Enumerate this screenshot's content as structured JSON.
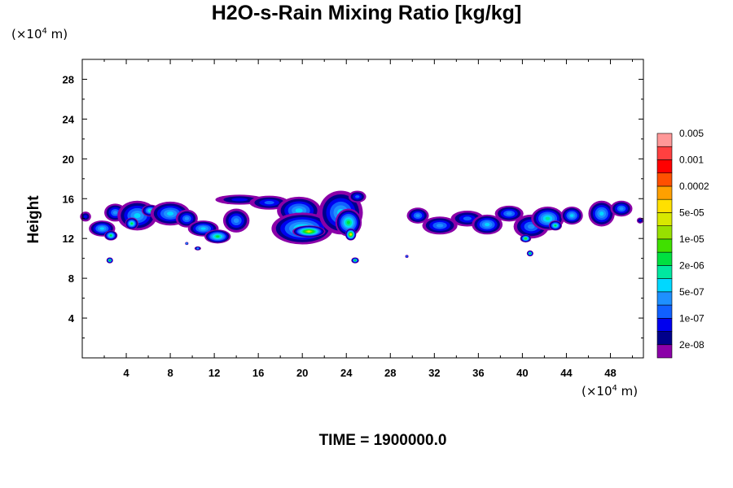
{
  "chart_data": {
    "type": "heatmap",
    "title": "H2O-s-Rain Mixing Ratio [kg/kg]",
    "xlabel": "",
    "ylabel": "Height",
    "x_unit": "(×10⁴ m)",
    "y_unit": "(×10⁴ m)",
    "xlim": [
      0,
      51
    ],
    "ylim": [
      0,
      30
    ],
    "x_ticks": [
      4,
      8,
      12,
      16,
      20,
      24,
      28,
      32,
      36,
      40,
      44,
      48
    ],
    "y_ticks": [
      4,
      8,
      12,
      16,
      20,
      24,
      28
    ],
    "footer": "TIME = 1900000.0",
    "colorbar": {
      "colors": [
        "#8b00a8",
        "#00008b",
        "#0000ee",
        "#1060ff",
        "#1e90ff",
        "#00d8ff",
        "#00e8a0",
        "#00e040",
        "#40e000",
        "#98e000",
        "#d8e800",
        "#ffe000",
        "#ffa000",
        "#ff5000",
        "#ff0000",
        "#ff4040",
        "#ff9898"
      ],
      "tick_labels": [
        "2e-08",
        "1e-07",
        "5e-07",
        "2e-06",
        "1e-05",
        "5e-05",
        "0.0002",
        "0.001",
        "0.005"
      ]
    },
    "blobs": [
      {
        "x": 0.3,
        "y": 14.2,
        "rx": 0.5,
        "ry": 0.5,
        "peak": 2
      },
      {
        "x": 1.8,
        "y": 13.0,
        "rx": 1.2,
        "ry": 0.8,
        "peak": 5
      },
      {
        "x": 2.6,
        "y": 12.3,
        "rx": 0.6,
        "ry": 0.5,
        "peak": 7
      },
      {
        "x": 3.0,
        "y": 14.6,
        "rx": 1.0,
        "ry": 0.9,
        "peak": 4
      },
      {
        "x": 5.0,
        "y": 14.3,
        "rx": 1.8,
        "ry": 1.5,
        "peak": 5
      },
      {
        "x": 4.5,
        "y": 13.5,
        "rx": 0.6,
        "ry": 0.6,
        "peak": 7
      },
      {
        "x": 6.2,
        "y": 14.8,
        "rx": 0.8,
        "ry": 0.6,
        "peak": 6
      },
      {
        "x": 8.0,
        "y": 14.5,
        "rx": 1.8,
        "ry": 1.2,
        "peak": 5
      },
      {
        "x": 9.5,
        "y": 14.0,
        "rx": 1.0,
        "ry": 0.9,
        "peak": 4
      },
      {
        "x": 11.0,
        "y": 13.0,
        "rx": 1.4,
        "ry": 0.8,
        "peak": 5
      },
      {
        "x": 12.3,
        "y": 12.2,
        "rx": 1.2,
        "ry": 0.7,
        "peak": 7
      },
      {
        "x": 14.0,
        "y": 13.8,
        "rx": 1.2,
        "ry": 1.2,
        "peak": 4
      },
      {
        "x": 14.3,
        "y": 15.9,
        "rx": 2.2,
        "ry": 0.5,
        "peak": 2
      },
      {
        "x": 17.0,
        "y": 15.6,
        "rx": 1.8,
        "ry": 0.7,
        "peak": 3
      },
      {
        "x": 19.7,
        "y": 14.8,
        "rx": 2.0,
        "ry": 1.4,
        "peak": 5
      },
      {
        "x": 20.0,
        "y": 13.0,
        "rx": 2.8,
        "ry": 1.6,
        "peak": 6
      },
      {
        "x": 20.6,
        "y": 12.7,
        "rx": 1.5,
        "ry": 0.6,
        "peak": 10
      },
      {
        "x": 23.5,
        "y": 14.6,
        "rx": 2.0,
        "ry": 2.2,
        "peak": 5
      },
      {
        "x": 24.2,
        "y": 13.6,
        "rx": 1.2,
        "ry": 1.4,
        "peak": 7
      },
      {
        "x": 24.4,
        "y": 12.4,
        "rx": 0.5,
        "ry": 0.6,
        "peak": 11
      },
      {
        "x": 25.0,
        "y": 16.2,
        "rx": 0.8,
        "ry": 0.6,
        "peak": 3
      },
      {
        "x": 9.5,
        "y": 11.5,
        "rx": 0.15,
        "ry": 0.15,
        "peak": 4
      },
      {
        "x": 10.5,
        "y": 11.0,
        "rx": 0.3,
        "ry": 0.2,
        "peak": 4
      },
      {
        "x": 2.5,
        "y": 9.8,
        "rx": 0.3,
        "ry": 0.3,
        "peak": 7
      },
      {
        "x": 24.8,
        "y": 9.8,
        "rx": 0.35,
        "ry": 0.3,
        "peak": 7
      },
      {
        "x": 29.5,
        "y": 10.2,
        "rx": 0.15,
        "ry": 0.15,
        "peak": 3
      },
      {
        "x": 30.5,
        "y": 14.3,
        "rx": 1.0,
        "ry": 0.8,
        "peak": 4
      },
      {
        "x": 32.5,
        "y": 13.3,
        "rx": 1.6,
        "ry": 0.9,
        "peak": 4
      },
      {
        "x": 35.0,
        "y": 14.0,
        "rx": 1.5,
        "ry": 0.8,
        "peak": 3
      },
      {
        "x": 36.8,
        "y": 13.4,
        "rx": 1.4,
        "ry": 1.0,
        "peak": 5
      },
      {
        "x": 38.8,
        "y": 14.5,
        "rx": 1.3,
        "ry": 0.8,
        "peak": 4
      },
      {
        "x": 40.8,
        "y": 13.2,
        "rx": 1.6,
        "ry": 1.2,
        "peak": 4
      },
      {
        "x": 40.3,
        "y": 12.0,
        "rx": 0.5,
        "ry": 0.4,
        "peak": 8
      },
      {
        "x": 42.3,
        "y": 14.0,
        "rx": 1.5,
        "ry": 1.2,
        "peak": 6
      },
      {
        "x": 43.0,
        "y": 13.3,
        "rx": 0.6,
        "ry": 0.5,
        "peak": 7
      },
      {
        "x": 44.5,
        "y": 14.3,
        "rx": 1.0,
        "ry": 0.9,
        "peak": 5
      },
      {
        "x": 40.7,
        "y": 10.5,
        "rx": 0.3,
        "ry": 0.3,
        "peak": 7
      },
      {
        "x": 47.2,
        "y": 14.5,
        "rx": 1.2,
        "ry": 1.3,
        "peak": 5
      },
      {
        "x": 49.0,
        "y": 15.0,
        "rx": 1.0,
        "ry": 0.8,
        "peak": 4
      },
      {
        "x": 50.7,
        "y": 13.8,
        "rx": 0.3,
        "ry": 0.3,
        "peak": 2
      }
    ]
  }
}
